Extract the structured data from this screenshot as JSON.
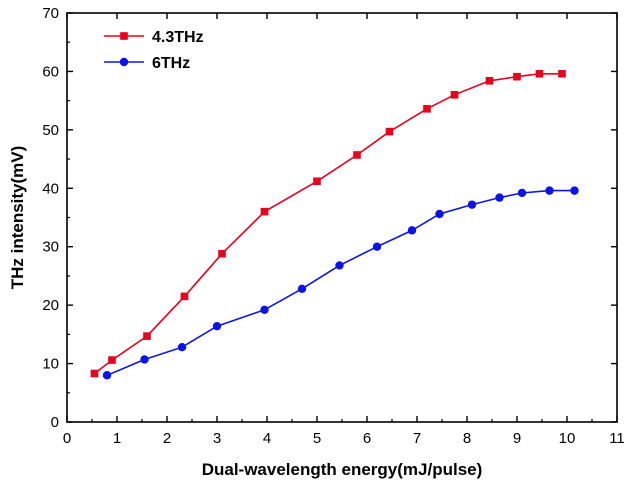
{
  "chart_data": {
    "type": "line",
    "title": "",
    "xlabel": "Dual-wavelength energy(mJ/pulse)",
    "ylabel": "THz intensity(mV)",
    "xlim": [
      0,
      11
    ],
    "ylim": [
      0,
      70
    ],
    "xticks": [
      0,
      1,
      2,
      3,
      4,
      5,
      6,
      7,
      8,
      9,
      10,
      11
    ],
    "yticks": [
      0,
      10,
      20,
      30,
      40,
      50,
      60,
      70
    ],
    "grid": false,
    "legend_position": "top-left",
    "series": [
      {
        "name": "4.3THz",
        "color": "#e8001c",
        "marker": "square",
        "x": [
          0.55,
          0.9,
          1.6,
          2.35,
          3.1,
          3.95,
          5.0,
          5.8,
          6.45,
          7.2,
          7.75,
          8.45,
          9.0,
          9.45,
          9.9
        ],
        "y": [
          8.3,
          10.6,
          14.7,
          21.5,
          28.8,
          36.0,
          41.2,
          45.7,
          49.7,
          53.6,
          56.0,
          58.4,
          59.1,
          59.6,
          59.6
        ]
      },
      {
        "name": "6THz",
        "color": "#0a14e8",
        "marker": "circle",
        "x": [
          0.8,
          1.55,
          2.3,
          3.0,
          3.95,
          4.7,
          5.45,
          6.2,
          6.9,
          7.45,
          8.1,
          8.65,
          9.1,
          9.65,
          10.15
        ],
        "y": [
          8.0,
          10.7,
          12.8,
          16.4,
          19.2,
          22.8,
          26.8,
          30.0,
          32.8,
          35.6,
          37.2,
          38.4,
          39.2,
          39.6,
          39.6
        ]
      }
    ]
  }
}
